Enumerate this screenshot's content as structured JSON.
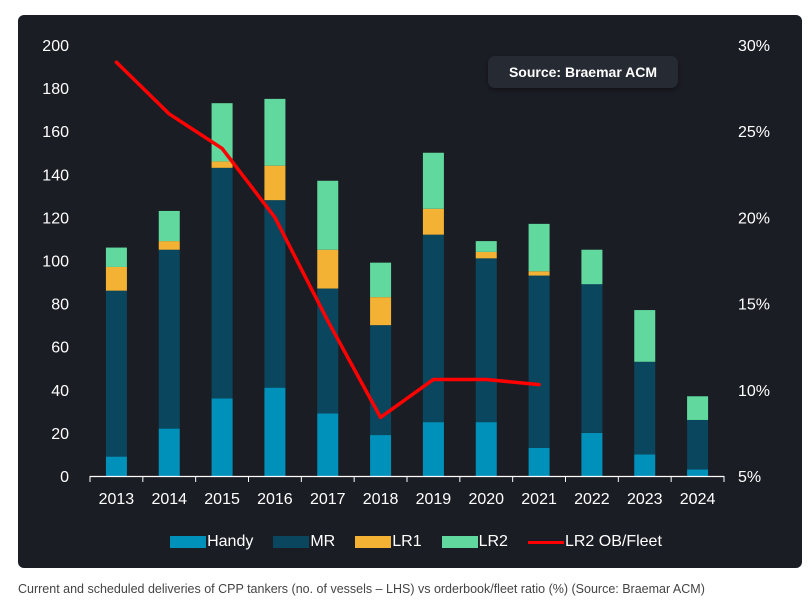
{
  "source_badge": "Source: Braemar ACM",
  "caption": "Current and scheduled deliveries of CPP tankers (no. of vessels – LHS) vs orderbook/fleet ratio (%) (Source: Braemar ACM)",
  "colors": {
    "Handy": "#0091bb",
    "MR": "#0a465e",
    "LR1": "#f3b234",
    "LR2": "#61d89e",
    "LR2 OB/Fleet": "#ff0000",
    "background": "#1b1d24",
    "text": "#ffffff"
  },
  "legend": [
    {
      "label": "Handy",
      "kind": "bar"
    },
    {
      "label": "MR",
      "kind": "bar"
    },
    {
      "label": "LR1",
      "kind": "bar"
    },
    {
      "label": "LR2",
      "kind": "bar"
    },
    {
      "label": "LR2 OB/Fleet",
      "kind": "line"
    }
  ],
  "chart_data": {
    "type": "bar",
    "stacked": true,
    "title": "",
    "xlabel": "",
    "ylabel": "",
    "y2label": "",
    "categories": [
      "2013",
      "2014",
      "2015",
      "2016",
      "2017",
      "2018",
      "2019",
      "2020",
      "2021",
      "2022",
      "2023",
      "2024"
    ],
    "series": [
      {
        "name": "Handy",
        "axis": "left",
        "values": [
          9,
          22,
          36,
          41,
          29,
          19,
          25,
          25,
          13,
          20,
          10,
          3
        ]
      },
      {
        "name": "MR",
        "axis": "left",
        "values": [
          77,
          83,
          107,
          87,
          58,
          51,
          87,
          76,
          80,
          69,
          43,
          23
        ]
      },
      {
        "name": "LR1",
        "axis": "left",
        "values": [
          11,
          4,
          3,
          16,
          18,
          13,
          12,
          3,
          2,
          0,
          0,
          0
        ]
      },
      {
        "name": "LR2",
        "axis": "left",
        "values": [
          9,
          14,
          27,
          31,
          32,
          16,
          26,
          5,
          22,
          16,
          24,
          11
        ]
      },
      {
        "name": "LR2 OB/Fleet",
        "type": "line",
        "axis": "right",
        "unit": "%",
        "values": [
          29.0,
          26.0,
          24.0,
          20.0,
          14.0,
          8.4,
          10.6,
          10.6,
          10.3,
          null,
          null,
          null
        ]
      }
    ],
    "ylim": [
      0,
      200
    ],
    "yticks": [
      0,
      20,
      40,
      60,
      80,
      100,
      120,
      140,
      160,
      180,
      200
    ],
    "y2lim": [
      5,
      30
    ],
    "y2ticks": [
      "5%",
      "10%",
      "15%",
      "20%",
      "25%",
      "30%"
    ],
    "y2tick_values": [
      5,
      10,
      15,
      20,
      25,
      30
    ],
    "grid": false,
    "legend_position": "bottom"
  }
}
